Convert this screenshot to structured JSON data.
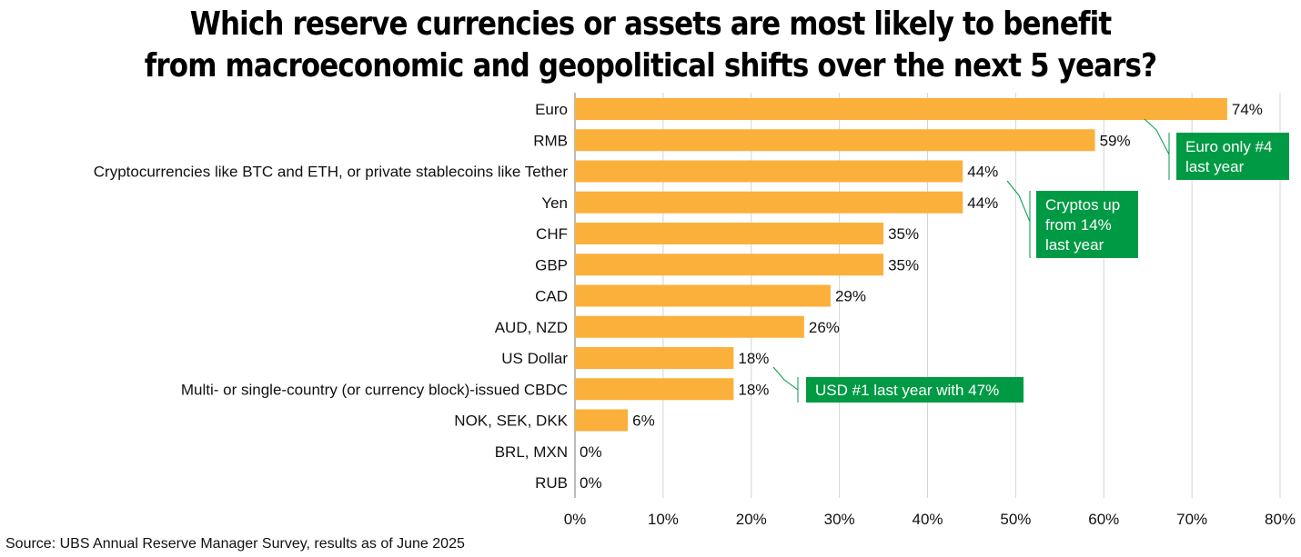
{
  "chart_data": {
    "type": "bar",
    "orientation": "horizontal",
    "title_lines": [
      "Which reserve currencies or assets are most likely to benefit",
      "from macroeconomic and geopolitical shifts over the next 5 years?"
    ],
    "categories": [
      "Euro",
      "RMB",
      "Cryptocurrencies like BTC and ETH, or private stablecoins like Tether",
      "Yen",
      "CHF",
      "GBP",
      "CAD",
      "AUD, NZD",
      "US Dollar",
      "Multi- or single-country (or currency block)-issued CBDC",
      "NOK, SEK, DKK",
      "BRL, MXN",
      "RUB"
    ],
    "values": [
      74,
      59,
      44,
      44,
      35,
      35,
      29,
      26,
      18,
      18,
      6,
      0,
      0
    ],
    "value_labels": [
      "74%",
      "59%",
      "44%",
      "44%",
      "35%",
      "35%",
      "29%",
      "26%",
      "18%",
      "18%",
      "6%",
      "0%",
      "0%"
    ],
    "xlim": [
      0,
      80
    ],
    "x_ticks": [
      0,
      10,
      20,
      30,
      40,
      50,
      60,
      70,
      80
    ],
    "x_tick_labels": [
      "0%",
      "10%",
      "20%",
      "30%",
      "40%",
      "50%",
      "60%",
      "70%",
      "80%"
    ],
    "grid": "vertical",
    "bar_color": "#FBB03B",
    "annotation_color": "#009A44",
    "annotations": [
      {
        "lines": [
          "Euro only #4",
          "last year"
        ],
        "target_category": "Euro"
      },
      {
        "lines": [
          "Cryptos up",
          "from 14%",
          "last year"
        ],
        "target_category": "Cryptocurrencies like BTC and ETH, or private stablecoins like Tether"
      },
      {
        "lines": [
          "USD #1 last year with 47%"
        ],
        "target_category": "US Dollar"
      }
    ]
  },
  "source": "Source: UBS Annual Reserve Manager Survey, results as of June 2025"
}
